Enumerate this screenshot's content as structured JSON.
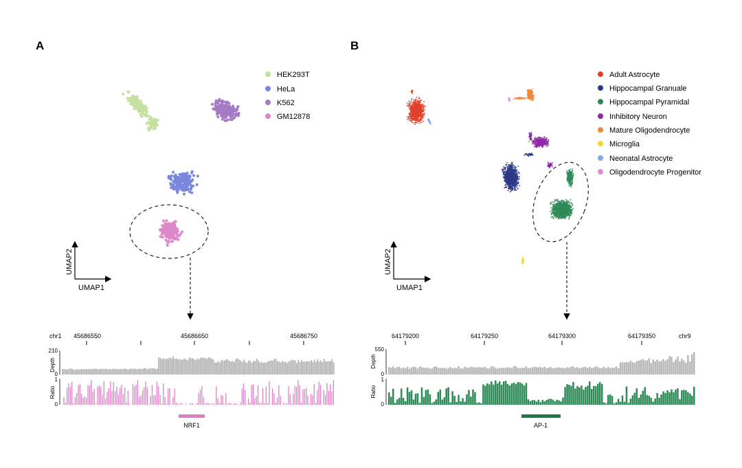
{
  "panel_a": {
    "label": "A",
    "legend": [
      {
        "name": "HEK293T",
        "color": "#c5e0a0"
      },
      {
        "name": "HeLa",
        "color": "#7b86de"
      },
      {
        "name": "K562",
        "color": "#a47bc4"
      },
      {
        "name": "GM12878",
        "color": "#de87c9"
      }
    ],
    "axes": {
      "x": "UMAP1",
      "y": "UMAP2"
    },
    "track": {
      "chrom": "chr1",
      "positions": [
        "45686550",
        "45686650",
        "45686750"
      ],
      "depth_label": "Depth",
      "depth_max": "210",
      "depth_min": "0",
      "ratio_label": "Ratio",
      "ratio_max": "1",
      "ratio_min": "0",
      "depth_color": "#b8b8b8",
      "ratio_color": "#de7fc6",
      "motif": {
        "name": "NRF1",
        "color": "#de7fc6"
      }
    }
  },
  "panel_b": {
    "label": "B",
    "legend": [
      {
        "name": "Adult Astrocyte",
        "color": "#e0402a"
      },
      {
        "name": "Hippocampal Granuale",
        "color": "#2c3a86"
      },
      {
        "name": "Hippocampal Pyramidal",
        "color": "#2e8b57"
      },
      {
        "name": "Inhibitory Neuron",
        "color": "#8e2aa5"
      },
      {
        "name": "Mature Oligodendrocyte",
        "color": "#f08a3a"
      },
      {
        "name": "Microglia",
        "color": "#f6d42e"
      },
      {
        "name": "Neonatal Astrocyte",
        "color": "#86a8f0"
      },
      {
        "name": "Oligodendrocyte Progenitor",
        "color": "#dc8fd0"
      }
    ],
    "axes": {
      "x": "UMAP1",
      "y": "UMAP2"
    },
    "track": {
      "chrom": "chr9",
      "positions": [
        "64179200",
        "64179250",
        "64179300",
        "64179350"
      ],
      "depth_label": "Depth",
      "depth_max": "550",
      "depth_min": "0",
      "ratio_label": "Ratio",
      "ratio_max": "1",
      "ratio_min": "0",
      "depth_color": "#b8b8b8",
      "ratio_color": "#2e8b57",
      "motif": {
        "name": "AP-1",
        "color": "#1f7a45"
      }
    }
  }
}
